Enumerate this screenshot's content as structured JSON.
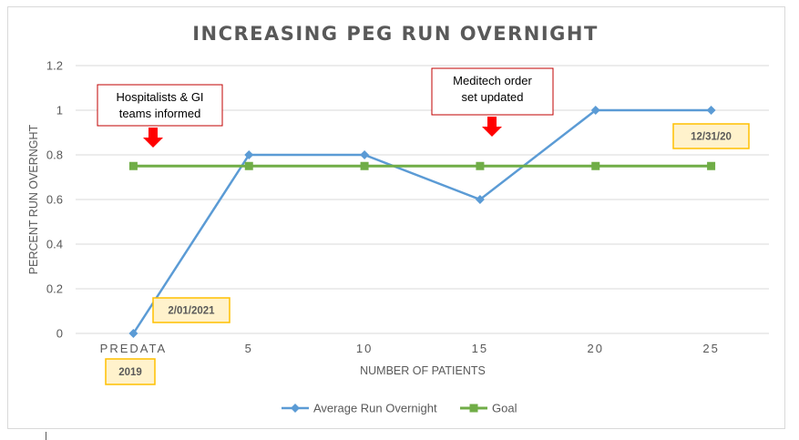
{
  "chart_data": {
    "type": "line",
    "title": "INCREASING PEG RUN OVERNIGHT",
    "xlabel": "NUMBER OF PATIENTS",
    "ylabel": "PERCENT RUN OVERNGHT",
    "categories": [
      "PREDATA",
      "5",
      "10",
      "15",
      "20",
      "25"
    ],
    "ylim": [
      0,
      1.2
    ],
    "yticks": [
      "0",
      "0.2",
      "0.4",
      "0.6",
      "0.8",
      "1",
      "1.2"
    ],
    "grid": true,
    "legend_position": "bottom",
    "series": [
      {
        "name": "Average Run Overnight",
        "values": [
          0,
          0.8,
          0.8,
          0.6,
          1,
          1
        ],
        "color": "#5b9bd5",
        "marker": "diamond"
      },
      {
        "name": "Goal",
        "values": [
          0.75,
          0.75,
          0.75,
          0.75,
          0.75,
          0.75
        ],
        "color": "#70ad47",
        "marker": "square"
      }
    ],
    "annotations": [
      {
        "lines": [
          "Hospitalists & GI",
          "teams informed"
        ],
        "category_index": 0.2,
        "arrow": true
      },
      {
        "lines": [
          "Meditech order",
          "set updated"
        ],
        "category_index": 3.1,
        "arrow": true
      }
    ],
    "date_labels": [
      "2019",
      "2/01/2021",
      "12/31/20"
    ]
  },
  "colors": {
    "text": "#595959",
    "grid": "#d9d9d9",
    "annotation_border": "#c00000",
    "arrow": "#ff0000",
    "date_fill": "#fff2cc",
    "date_border": "#ffc000"
  }
}
